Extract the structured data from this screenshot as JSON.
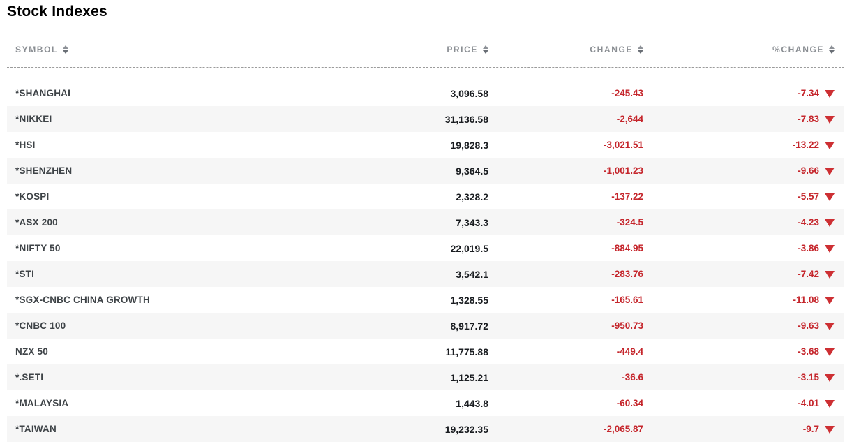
{
  "title": "Stock Indexes",
  "colors": {
    "negative_text": "#c5262c",
    "negative_arrow": "#cd2f33",
    "header_text": "#8a8e93",
    "symbol_text": "#3e4347",
    "price_text": "#1a1d21",
    "row_alt_bg": "#f6f6f6",
    "divider": "#9b9b9b"
  },
  "table": {
    "headers": [
      {
        "label": "SYMBOL"
      },
      {
        "label": "PRICE"
      },
      {
        "label": "CHANGE"
      },
      {
        "label": "%CHANGE"
      }
    ],
    "rows": [
      {
        "symbol": "*SHANGHAI",
        "price": "3,096.58",
        "change": "-245.43",
        "pct_change": "-7.34",
        "direction": "down"
      },
      {
        "symbol": "*NIKKEI",
        "price": "31,136.58",
        "change": "-2,644",
        "pct_change": "-7.83",
        "direction": "down"
      },
      {
        "symbol": "*HSI",
        "price": "19,828.3",
        "change": "-3,021.51",
        "pct_change": "-13.22",
        "direction": "down"
      },
      {
        "symbol": "*SHENZHEN",
        "price": "9,364.5",
        "change": "-1,001.23",
        "pct_change": "-9.66",
        "direction": "down"
      },
      {
        "symbol": "*KOSPI",
        "price": "2,328.2",
        "change": "-137.22",
        "pct_change": "-5.57",
        "direction": "down"
      },
      {
        "symbol": "*ASX 200",
        "price": "7,343.3",
        "change": "-324.5",
        "pct_change": "-4.23",
        "direction": "down"
      },
      {
        "symbol": "*NIFTY 50",
        "price": "22,019.5",
        "change": "-884.95",
        "pct_change": "-3.86",
        "direction": "down"
      },
      {
        "symbol": "*STI",
        "price": "3,542.1",
        "change": "-283.76",
        "pct_change": "-7.42",
        "direction": "down"
      },
      {
        "symbol": "*SGX-CNBC CHINA GROWTH",
        "price": "1,328.55",
        "change": "-165.61",
        "pct_change": "-11.08",
        "direction": "down"
      },
      {
        "symbol": "*CNBC 100",
        "price": "8,917.72",
        "change": "-950.73",
        "pct_change": "-9.63",
        "direction": "down"
      },
      {
        "symbol": "NZX 50",
        "price": "11,775.88",
        "change": "-449.4",
        "pct_change": "-3.68",
        "direction": "down"
      },
      {
        "symbol": "*.SETI",
        "price": "1,125.21",
        "change": "-36.6",
        "pct_change": "-3.15",
        "direction": "down"
      },
      {
        "symbol": "*MALAYSIA",
        "price": "1,443.8",
        "change": "-60.34",
        "pct_change": "-4.01",
        "direction": "down"
      },
      {
        "symbol": "*TAIWAN",
        "price": "19,232.35",
        "change": "-2,065.87",
        "pct_change": "-9.7",
        "direction": "down"
      }
    ]
  }
}
